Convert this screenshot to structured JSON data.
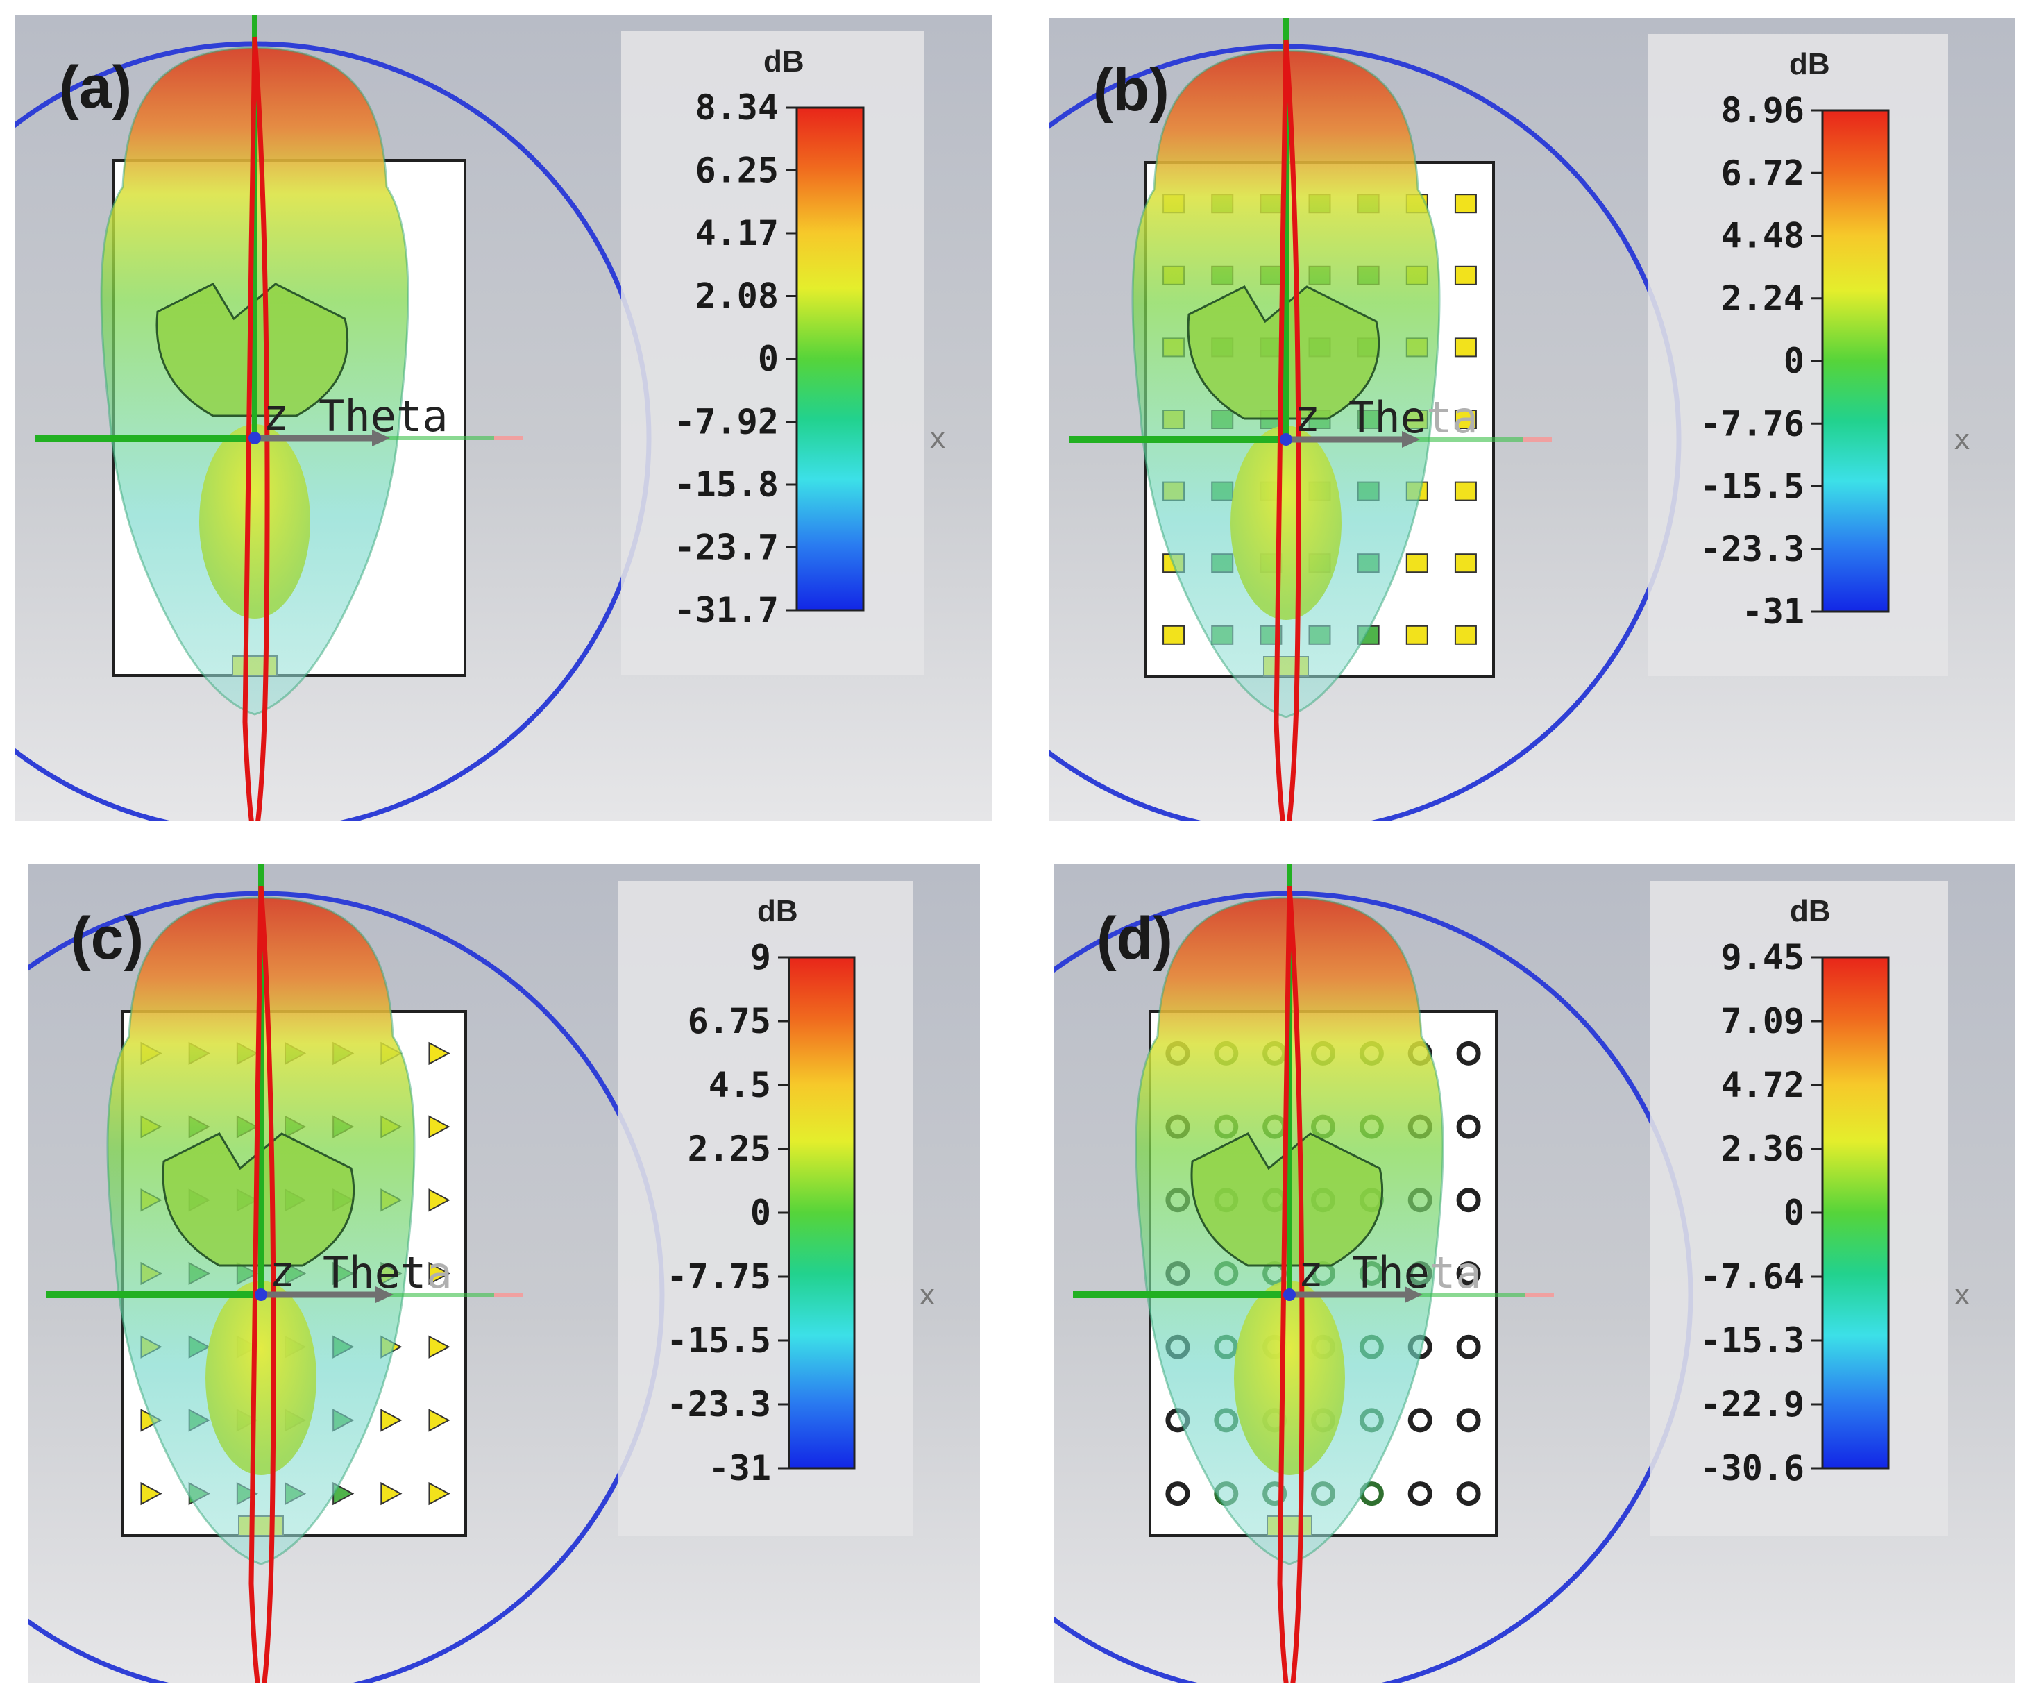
{
  "figure": {
    "panels": [
      {
        "id": "a",
        "label": "(a)",
        "scale": {
          "unit": "dB",
          "ticks": [
            "8.34",
            "6.25",
            "4.17",
            "2.08",
            "0",
            "-7.92",
            "-15.8",
            "-23.7",
            "-31.7"
          ]
        },
        "axis_label_main": "Theta",
        "axis_label_faded": "",
        "z_label": "z",
        "x_mark": "x",
        "pattern": "none"
      },
      {
        "id": "b",
        "label": "(b)",
        "scale": {
          "unit": "dB",
          "ticks": [
            "8.96",
            "6.72",
            "4.48",
            "2.24",
            "0",
            "-7.76",
            "-15.5",
            "-23.3",
            "-31"
          ]
        },
        "axis_label_main": "The",
        "axis_label_faded": "ta",
        "z_label": "z",
        "x_mark": "x",
        "pattern": "squares"
      },
      {
        "id": "c",
        "label": "(c)",
        "scale": {
          "unit": "dB",
          "ticks": [
            "9",
            "6.75",
            "4.5",
            "2.25",
            "0",
            "-7.75",
            "-15.5",
            "-23.3",
            "-31"
          ]
        },
        "axis_label_main": "Thet",
        "axis_label_faded": "a",
        "z_label": "z",
        "x_mark": "x",
        "pattern": "triangles"
      },
      {
        "id": "d",
        "label": "(d)",
        "scale": {
          "unit": "dB",
          "ticks": [
            "9.45",
            "7.09",
            "4.72",
            "2.36",
            "0",
            "-7.64",
            "-15.3",
            "-22.9",
            "-30.6"
          ]
        },
        "axis_label_main": "The",
        "axis_label_faded": "ta",
        "z_label": "z",
        "x_mark": "x",
        "pattern": "rings"
      }
    ],
    "colors": {
      "background_gray": "#c9cbd0",
      "scale_panel": "#e4e4e6",
      "outer_circle": "#2f3fd6",
      "axis_green": "#22b022",
      "axis_red": "#e01414",
      "axis_pink": "#f0a0a0",
      "lobe_red": "#d8452a",
      "lobe_yellow": "#d9e23a",
      "lobe_green": "#7dd64a",
      "lobe_cyan": "#6fd6c8"
    }
  }
}
